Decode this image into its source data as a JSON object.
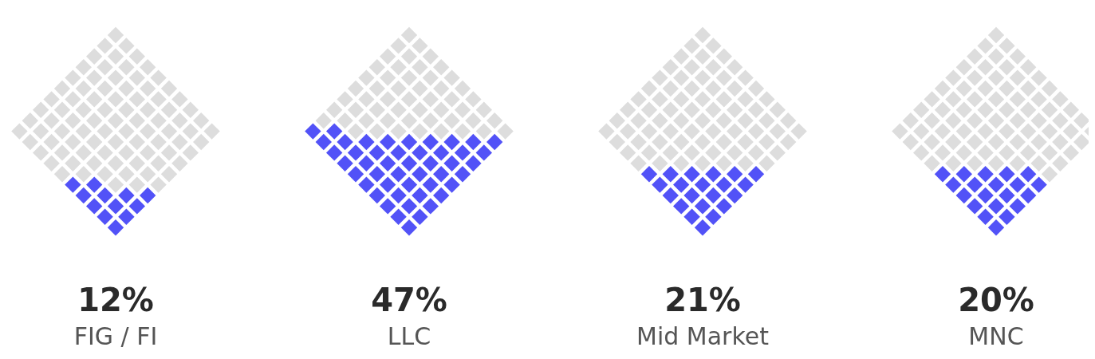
{
  "chart_data": {
    "type": "other",
    "categories": [
      "FIG / FI",
      "LLC",
      "Mid Market",
      "MNC"
    ],
    "values": [
      12,
      47,
      21,
      20
    ],
    "value_labels": [
      "12%",
      "47%",
      "21%",
      "20%"
    ],
    "color": "#5252f7"
  }
}
